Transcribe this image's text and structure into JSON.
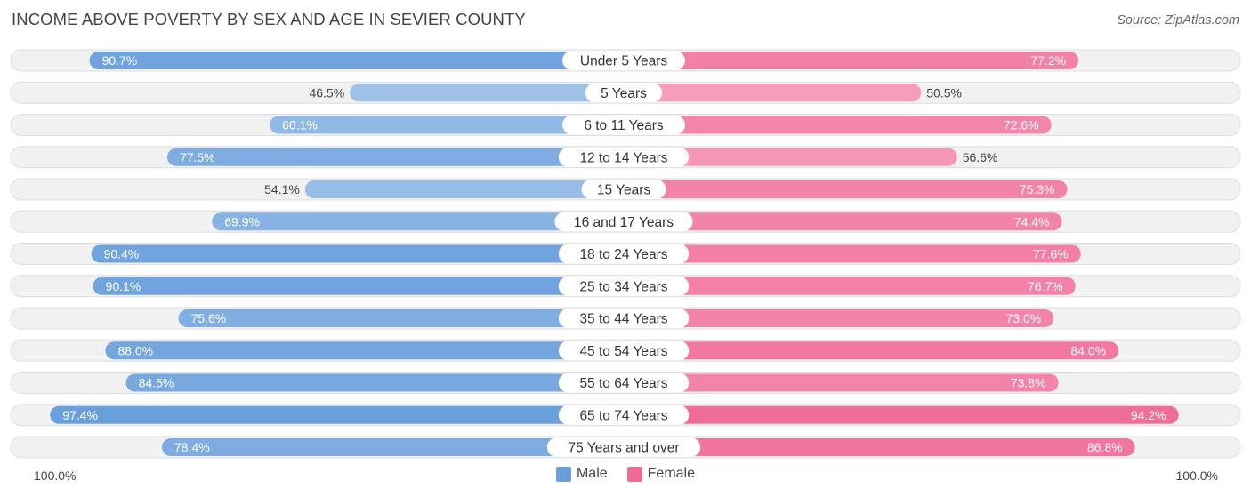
{
  "chart_data": {
    "type": "bar",
    "orientation": "horizontal-diverging",
    "title": "INCOME ABOVE POVERTY BY SEX AND AGE IN SEVIER COUNTY",
    "source": "Source: ZipAtlas.com",
    "categories": [
      "Under 5 Years",
      "5 Years",
      "6 to 11 Years",
      "12 to 14 Years",
      "15 Years",
      "16 and 17 Years",
      "18 to 24 Years",
      "25 to 34 Years",
      "35 to 44 Years",
      "45 to 54 Years",
      "55 to 64 Years",
      "65 to 74 Years",
      "75 Years and over"
    ],
    "series": [
      {
        "name": "Male",
        "values": [
          90.7,
          46.5,
          60.1,
          77.5,
          54.1,
          69.9,
          90.4,
          90.1,
          75.6,
          88.0,
          84.5,
          97.4,
          78.4
        ],
        "labels": [
          "90.7%",
          "46.5%",
          "60.1%",
          "77.5%",
          "54.1%",
          "69.9%",
          "90.4%",
          "90.1%",
          "75.6%",
          "88.0%",
          "84.5%",
          "97.4%",
          "78.4%"
        ]
      },
      {
        "name": "Female",
        "values": [
          77.2,
          50.5,
          72.6,
          56.6,
          75.3,
          74.4,
          77.6,
          76.7,
          73.0,
          84.0,
          73.8,
          94.2,
          86.8
        ],
        "labels": [
          "77.2%",
          "50.5%",
          "72.6%",
          "56.6%",
          "75.3%",
          "74.4%",
          "77.6%",
          "76.7%",
          "73.0%",
          "84.0%",
          "73.8%",
          "94.2%",
          "86.8%"
        ]
      }
    ],
    "xlim": [
      0,
      100
    ],
    "axis_left_label": "100.0%",
    "axis_right_label": "100.0%",
    "legend_position": "bottom-center",
    "colors": {
      "male_strong": "#6a9fdd",
      "male_light": "#a7c7eb",
      "female_strong": "#f06a96",
      "female_light": "#f8a8c2",
      "row_bg": "#f1f1f1",
      "row_border": "#dedede"
    }
  }
}
